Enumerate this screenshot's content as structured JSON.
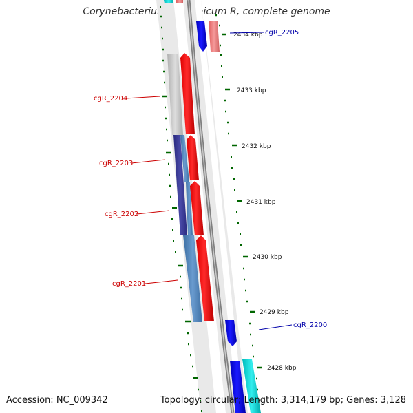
{
  "map": {
    "title": "Corynebacterium glutamicum R, complete genome",
    "accession": "Accession: NC_009342",
    "topology": "Topology: circular; Length: 3,314,179 bp; Genes: 3,128"
  },
  "colors": {
    "forward_cds": "#ff0000",
    "reverse_cds": "#0000ff",
    "label_red": "#cc0000",
    "label_blue": "#0000aa",
    "tick_green": "#006600",
    "backbone": "#808080"
  },
  "scale_labels": [
    "2434 kbp",
    "2433 kbp",
    "2432 kbp",
    "2431 kbp",
    "2430 kbp",
    "2429 kbp",
    "2428 kbp"
  ],
  "gene_labels": [
    "cgR_2205",
    "cgR_2204",
    "cgR_2203",
    "cgR_2202",
    "cgR_2201",
    "cgR_2200"
  ]
}
